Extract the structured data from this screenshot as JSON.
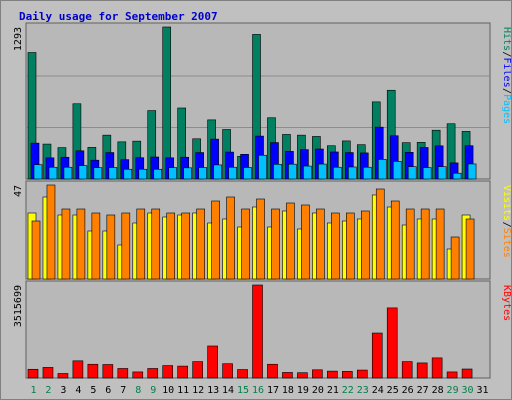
{
  "colors": {
    "background": "#c0c0c0",
    "panel_bg": "#b8b8b8",
    "title": "#0000cc",
    "hits": "#008060",
    "files": "#0000ff",
    "pages": "#00c0ff",
    "visits": "#ffff00",
    "sites": "#ff8000",
    "kbytes": "#ff0000",
    "weekend": "#00804a",
    "weekday": "#000000"
  },
  "chart_data": {
    "type": "bar",
    "title": "Daily usage for September 2007",
    "days": [
      "1",
      "2",
      "3",
      "4",
      "5",
      "6",
      "7",
      "8",
      "9",
      "10",
      "11",
      "12",
      "13",
      "14",
      "15",
      "16",
      "17",
      "18",
      "19",
      "20",
      "21",
      "22",
      "23",
      "24",
      "25",
      "26",
      "27",
      "28",
      "29",
      "30",
      "31"
    ],
    "weekend_days": [
      "1",
      "2",
      "8",
      "9",
      "15",
      "16",
      "22",
      "23",
      "29",
      "30"
    ],
    "panels": [
      {
        "id": "hits-files-pages",
        "max_label": "1293",
        "ylim": [
          0,
          1293
        ],
        "legend": [
          {
            "text": "Hits",
            "color": "#008060"
          },
          {
            "text": "/",
            "color": "#000000"
          },
          {
            "text": "Files",
            "color": "#0000ff"
          },
          {
            "text": "/",
            "color": "#000000"
          },
          {
            "text": "Pages",
            "color": "#00c0ff"
          }
        ],
        "series": [
          {
            "name": "Hits",
            "color": "#008060",
            "values": [
              1076,
              297,
              267,
              640,
              269,
              373,
              316,
              322,
              582,
              1293,
              604,
              342,
              503,
              421,
              193,
              1230,
              521,
              379,
              373,
              362,
              283,
              324,
              292,
              656,
              755,
              309,
              312,
              415,
              470,
              405,
              0
            ]
          },
          {
            "name": "Files",
            "color": "#0000ff",
            "values": [
              305,
              180,
              185,
              240,
              160,
              225,
              165,
              181,
              187,
              180,
              185,
              225,
              339,
              229,
              210,
              365,
              310,
              235,
              250,
              255,
              230,
              225,
              222,
              441,
              368,
              227,
              268,
              282,
              137,
              283,
              0
            ]
          },
          {
            "name": "Pages",
            "color": "#00c0ff",
            "values": [
              122,
              100,
              100,
              114,
              97,
              98,
              83,
              83,
              83,
              97,
              95,
              98,
              120,
              100,
              98,
              202,
              125,
              126,
              110,
              127,
              100,
              102,
              100,
              167,
              150,
              105,
              97,
              105,
              49,
              128,
              0
            ]
          }
        ]
      },
      {
        "id": "visits-sites",
        "max_label": "47",
        "ylim": [
          0,
          47
        ],
        "legend": [
          {
            "text": "Visits",
            "color": "#ffff00"
          },
          {
            "text": "/",
            "color": "#000000"
          },
          {
            "text": "Sites",
            "color": "#ff8000"
          }
        ],
        "series": [
          {
            "name": "Visits",
            "color": "#ffff00",
            "values": [
              33,
              41,
              32,
              32,
              24,
              24,
              17,
              28,
              33,
              31,
              32,
              33,
              28,
              30,
              26,
              36,
              26,
              34,
              25,
              33,
              28,
              29,
              30,
              42,
              36,
              27,
              30,
              30,
              15,
              32,
              0
            ]
          },
          {
            "name": "Sites",
            "color": "#ff8000",
            "values": [
              29,
              47,
              35,
              35,
              33,
              32,
              33,
              35,
              35,
              33,
              33,
              35,
              39,
              41,
              35,
              40,
              35,
              38,
              37,
              35,
              33,
              33,
              34,
              45,
              39,
              35,
              35,
              35,
              21,
              30,
              0
            ]
          }
        ]
      },
      {
        "id": "kbytes",
        "max_label": "3515699",
        "ylim": [
          0,
          3515699
        ],
        "legend": [
          {
            "text": "KBytes",
            "color": "#ff0000"
          }
        ],
        "series": [
          {
            "name": "KBytes",
            "color": "#ff0000",
            "values": [
              330000,
              400000,
              170000,
              650000,
              520000,
              510000,
              360000,
              230000,
              360000,
              470000,
              450000,
              620000,
              1210000,
              540000,
              320000,
              3515699,
              520000,
              210000,
              200000,
              310000,
              260000,
              250000,
              300000,
              1700000,
              2650000,
              620000,
              570000,
              760000,
              230000,
              340000,
              0
            ]
          }
        ]
      }
    ]
  }
}
